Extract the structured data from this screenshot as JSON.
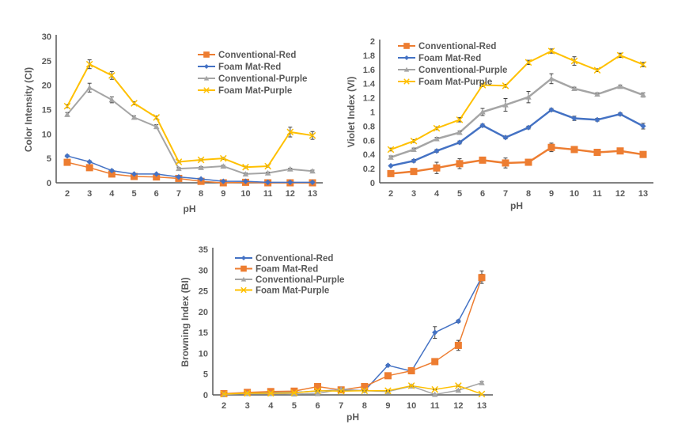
{
  "chart_data": [
    {
      "type": "line",
      "title": "",
      "xlabel": "pH",
      "ylabel": "Color Intensity (CI)",
      "x": [
        2,
        3,
        4,
        5,
        6,
        7,
        8,
        9,
        10,
        11,
        12,
        13
      ],
      "ylim": [
        0,
        30
      ],
      "yticks": [
        0,
        5,
        10,
        15,
        20,
        25,
        30
      ],
      "grid": false,
      "legend": "top-right",
      "series": [
        {
          "name": "Conventional-Red",
          "color": "#ED7D31",
          "marker": "square",
          "values": [
            4.2,
            3.1,
            1.8,
            1.3,
            1.2,
            0.9,
            0.3,
            0.0,
            0.1,
            0.0,
            0.0,
            0.0
          ],
          "errors": [
            0.3,
            0.3,
            0.2,
            0.1,
            0.1,
            0.1,
            0.1,
            0.0,
            0.0,
            0.0,
            0.0,
            0.0
          ]
        },
        {
          "name": "Foam Mat-Red",
          "color": "#4472C4",
          "marker": "diamond",
          "values": [
            5.5,
            4.3,
            2.5,
            1.8,
            1.8,
            1.2,
            0.8,
            0.3,
            0.3,
            0.1,
            0.1,
            0.1
          ],
          "errors": [
            0.2,
            0.2,
            0.2,
            0.1,
            0.1,
            0.1,
            0.1,
            0.0,
            0.0,
            0.0,
            0.0,
            0.0
          ]
        },
        {
          "name": "Conventional-Purple",
          "color": "#A5A5A5",
          "marker": "triangle",
          "values": [
            14.0,
            19.5,
            17.0,
            13.4,
            11.5,
            2.9,
            3.1,
            3.4,
            1.8,
            2.0,
            2.8,
            2.4
          ],
          "errors": [
            0.4,
            0.9,
            0.6,
            0.3,
            0.4,
            0.2,
            0.2,
            0.2,
            0.2,
            0.2,
            0.2,
            0.2
          ]
        },
        {
          "name": "Foam Mat-Purple",
          "color": "#FFC000",
          "marker": "x",
          "values": [
            15.7,
            24.3,
            22.0,
            16.3,
            13.4,
            4.3,
            4.7,
            5.0,
            3.2,
            3.4,
            10.4,
            9.7
          ],
          "errors": [
            0.3,
            0.9,
            0.8,
            0.3,
            0.3,
            0.2,
            0.2,
            0.2,
            0.2,
            0.2,
            1.0,
            0.8
          ]
        }
      ]
    },
    {
      "type": "line",
      "title": "",
      "xlabel": "pH",
      "ylabel": "Violet Index (VI)",
      "x": [
        2,
        3,
        4,
        5,
        6,
        7,
        8,
        9,
        10,
        11,
        12,
        13
      ],
      "ylim": [
        0,
        2
      ],
      "yticks": [
        0,
        0.2,
        0.4,
        0.6,
        0.8,
        1,
        1.2,
        1.4,
        1.6,
        1.8,
        2
      ],
      "grid": false,
      "legend": "top-left",
      "series": [
        {
          "name": "Conventional-Red",
          "color": "#ED7D31",
          "marker": "square",
          "values": [
            0.13,
            0.16,
            0.21,
            0.27,
            0.32,
            0.28,
            0.29,
            0.5,
            0.47,
            0.43,
            0.45,
            0.4
          ],
          "errors": [
            0.02,
            0.04,
            0.08,
            0.07,
            0.03,
            0.07,
            0.02,
            0.06,
            0.02,
            0.02,
            0.02,
            0.02
          ]
        },
        {
          "name": "Foam Mat-Red",
          "color": "#4472C4",
          "marker": "diamond",
          "values": [
            0.24,
            0.31,
            0.45,
            0.57,
            0.81,
            0.64,
            0.78,
            1.03,
            0.91,
            0.89,
            0.97,
            0.8
          ],
          "errors": [
            0.01,
            0.02,
            0.02,
            0.02,
            0.02,
            0.02,
            0.02,
            0.02,
            0.03,
            0.02,
            0.02,
            0.04
          ]
        },
        {
          "name": "Conventional-Purple",
          "color": "#A5A5A5",
          "marker": "triangle",
          "values": [
            0.36,
            0.47,
            0.62,
            0.71,
            1.0,
            1.1,
            1.21,
            1.47,
            1.33,
            1.25,
            1.36,
            1.24
          ],
          "errors": [
            0.02,
            0.02,
            0.02,
            0.02,
            0.05,
            0.09,
            0.08,
            0.07,
            0.02,
            0.02,
            0.02,
            0.03
          ]
        },
        {
          "name": "Foam Mat-Purple",
          "color": "#FFC000",
          "marker": "x",
          "values": [
            0.47,
            0.59,
            0.77,
            0.89,
            1.38,
            1.37,
            1.7,
            1.86,
            1.72,
            1.59,
            1.8,
            1.67
          ],
          "errors": [
            0.02,
            0.02,
            0.02,
            0.03,
            0.02,
            0.02,
            0.03,
            0.03,
            0.06,
            0.02,
            0.03,
            0.03
          ]
        }
      ]
    },
    {
      "type": "line",
      "title": "",
      "xlabel": "pH",
      "ylabel": "Browning Index (BI)",
      "x": [
        2,
        3,
        4,
        5,
        6,
        7,
        8,
        9,
        10,
        11,
        12,
        13
      ],
      "ylim": [
        0,
        35
      ],
      "yticks": [
        0,
        5,
        10,
        15,
        20,
        25,
        30,
        35
      ],
      "grid": false,
      "legend": "top-left",
      "series": [
        {
          "name": "Conventional-Red",
          "color": "#4472C4",
          "marker": "diamond",
          "values": [
            0.2,
            0.4,
            0.5,
            0.6,
            0.9,
            1.2,
            1.0,
            7.1,
            5.7,
            15.0,
            17.7,
            28.3
          ],
          "errors": [
            0.1,
            0.1,
            0.1,
            0.1,
            0.1,
            0.2,
            0.1,
            0.2,
            0.2,
            1.4,
            0.3,
            1.5
          ]
        },
        {
          "name": "Foam Mat-Red",
          "color": "#ED7D31",
          "marker": "square",
          "values": [
            0.3,
            0.6,
            0.8,
            0.9,
            2.0,
            1.2,
            2.0,
            4.6,
            5.8,
            8.0,
            11.9,
            28.2
          ],
          "errors": [
            0.1,
            0.1,
            0.1,
            0.1,
            0.2,
            0.2,
            0.2,
            0.2,
            0.3,
            0.3,
            1.2,
            0.8
          ]
        },
        {
          "name": "Conventional-Purple",
          "color": "#A5A5A5",
          "marker": "triangle",
          "values": [
            0.1,
            0.3,
            0.3,
            0.2,
            0.3,
            1.4,
            1.0,
            0.8,
            2.1,
            0.1,
            1.1,
            2.9
          ],
          "errors": [
            0.0,
            0.0,
            0.0,
            0.0,
            0.0,
            0.1,
            0.1,
            0.1,
            0.2,
            0.0,
            0.1,
            0.3
          ]
        },
        {
          "name": "Foam Mat-Purple",
          "color": "#FFC000",
          "marker": "x",
          "values": [
            0.2,
            0.4,
            0.4,
            0.5,
            1.0,
            0.9,
            1.0,
            1.0,
            2.2,
            1.3,
            2.2,
            0.2
          ],
          "errors": [
            0.0,
            0.0,
            0.0,
            0.0,
            0.1,
            0.1,
            0.1,
            0.1,
            0.2,
            0.1,
            0.2,
            0.0
          ]
        }
      ]
    }
  ]
}
